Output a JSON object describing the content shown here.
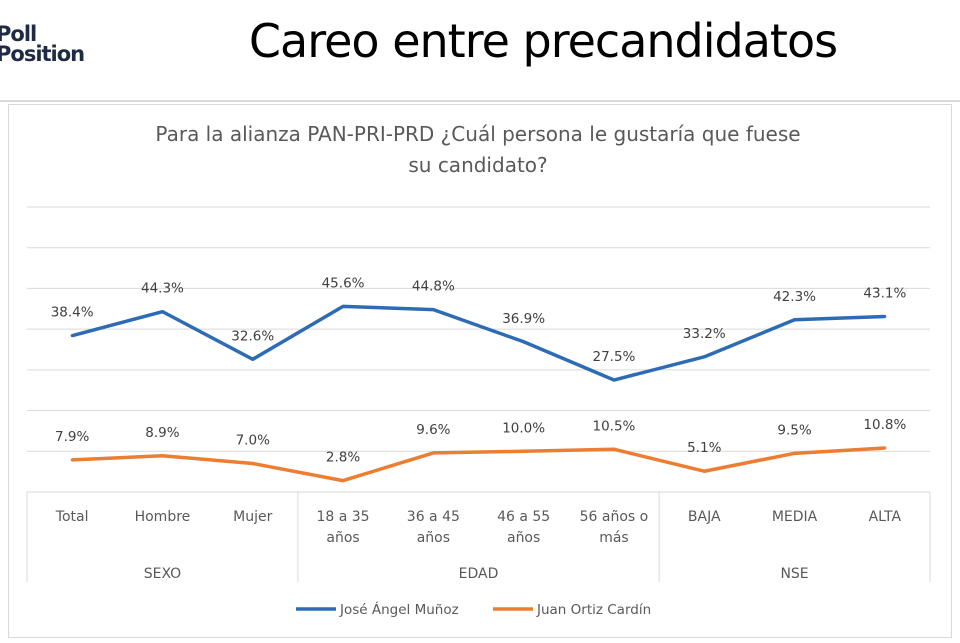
{
  "header": {
    "logo_line1": "Poll",
    "logo_line2": "Position",
    "title": "Careo entre precandidatos"
  },
  "chart_data": {
    "type": "line",
    "title_lines": [
      "Para la alianza PAN-PRI-PRD ¿Cuál persona le gustaría que fuese",
      "su candidato?"
    ],
    "categories": [
      [
        "Total"
      ],
      [
        "Hombre"
      ],
      [
        "Mujer"
      ],
      [
        "18 a 35",
        "años"
      ],
      [
        "36 a 45",
        "años"
      ],
      [
        "46 a 55",
        "años"
      ],
      [
        "56 años o",
        "más"
      ],
      [
        "BAJA"
      ],
      [
        "MEDIA"
      ],
      [
        "ALTA"
      ]
    ],
    "groups": [
      {
        "label": "SEXO",
        "span": 3
      },
      {
        "label": "EDAD",
        "span": 4
      },
      {
        "label": "NSE",
        "span": 3
      }
    ],
    "series": [
      {
        "name": "José Ángel Muñoz",
        "color": "#2e6bb5",
        "values": [
          38.4,
          44.3,
          32.6,
          45.6,
          44.8,
          36.9,
          27.5,
          33.2,
          42.3,
          43.1
        ],
        "labels": [
          "38.4%",
          "44.3%",
          "32.6%",
          "45.6%",
          "44.8%",
          "36.9%",
          "27.5%",
          "33.2%",
          "42.3%",
          "43.1%"
        ]
      },
      {
        "name": "Juan Ortiz Cardín",
        "color": "#ed7d31",
        "values": [
          7.9,
          8.9,
          7.0,
          2.8,
          9.6,
          10.0,
          10.5,
          5.1,
          9.5,
          10.8
        ],
        "labels": [
          "7.9%",
          "8.9%",
          "7.0%",
          "2.8%",
          "9.6%",
          "10.0%",
          "10.5%",
          "5.1%",
          "9.5%",
          "10.8%"
        ]
      }
    ],
    "ylim": [
      0,
      70
    ],
    "grid": true,
    "legend_position": "bottom"
  }
}
